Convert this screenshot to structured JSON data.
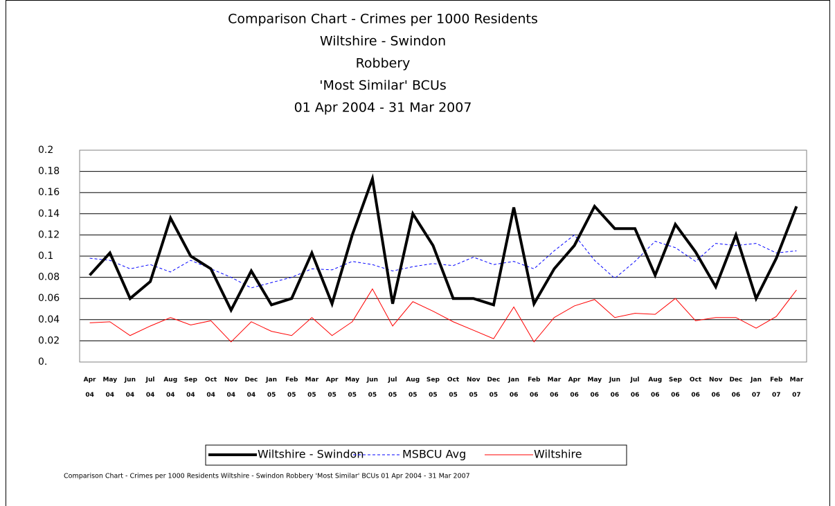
{
  "chart_data": {
    "type": "line",
    "title": [
      "Comparison Chart - Crimes per 1000 Residents",
      "Wiltshire - Swindon",
      "Robbery",
      "'Most Similar' BCUs",
      "01 Apr 2004 - 31 Mar 2007"
    ],
    "footnote": "Comparison Chart  - Crimes per 1000 Residents Wiltshire - Swindon Robbery 'Most Similar' BCUs 01 Apr 2004 - 31 Mar 2007",
    "categories": [
      "Apr 04",
      "May 04",
      "Jun 04",
      "Jul 04",
      "Aug 04",
      "Sep 04",
      "Oct 04",
      "Nov 04",
      "Dec 04",
      "Jan 05",
      "Feb 05",
      "Mar 05",
      "Apr 05",
      "May 05",
      "Jun 05",
      "Jul 05",
      "Aug 05",
      "Sep 05",
      "Oct 05",
      "Nov 05",
      "Dec 05",
      "Jan 06",
      "Feb 06",
      "Mar 06",
      "Apr 06",
      "May 06",
      "Jun 06",
      "Jul 06",
      "Aug 06",
      "Sep 06",
      "Oct 06",
      "Nov 06",
      "Dec 06",
      "Jan 07",
      "Feb 07",
      "Mar 07"
    ],
    "series": [
      {
        "name": "Wiltshire - Swindon",
        "color": "#000000",
        "style": "thick",
        "values": [
          0.082,
          0.103,
          0.06,
          0.076,
          0.136,
          0.1,
          0.088,
          0.049,
          0.086,
          0.054,
          0.06,
          0.103,
          0.055,
          0.12,
          0.173,
          0.055,
          0.14,
          0.11,
          0.06,
          0.06,
          0.054,
          0.146,
          0.055,
          0.088,
          0.11,
          0.147,
          0.126,
          0.126,
          0.082,
          0.13,
          0.104,
          0.071,
          0.12,
          0.06,
          0.098,
          0.147
        ]
      },
      {
        "name": "MSBCU Avg",
        "color": "#0000ff",
        "style": "dashed",
        "values": [
          0.098,
          0.096,
          0.088,
          0.092,
          0.085,
          0.096,
          0.088,
          0.08,
          0.07,
          0.075,
          0.08,
          0.088,
          0.087,
          0.095,
          0.092,
          0.086,
          0.09,
          0.093,
          0.091,
          0.099,
          0.092,
          0.095,
          0.088,
          0.105,
          0.12,
          0.096,
          0.079,
          0.095,
          0.114,
          0.108,
          0.095,
          0.112,
          0.11,
          0.112,
          0.103,
          0.105
        ]
      },
      {
        "name": "Wiltshire",
        "color": "#ff0000",
        "style": "solid",
        "values": [
          0.037,
          0.038,
          0.025,
          0.034,
          0.042,
          0.035,
          0.039,
          0.019,
          0.038,
          0.029,
          0.025,
          0.042,
          0.025,
          0.038,
          0.069,
          0.034,
          0.057,
          0.048,
          0.038,
          0.03,
          0.022,
          0.052,
          0.019,
          0.042,
          0.053,
          0.059,
          0.042,
          0.046,
          0.045,
          0.06,
          0.039,
          0.042,
          0.042,
          0.032,
          0.043,
          0.068
        ]
      }
    ],
    "ylim": [
      0,
      0.2
    ],
    "yticks": [
      {
        "value": 0,
        "label": "0."
      },
      0.02,
      0.04,
      0.06,
      0.08,
      0.1,
      0.12,
      0.14,
      0.16,
      0.18,
      0.2
    ],
    "grid": true,
    "legend": "bottom"
  }
}
